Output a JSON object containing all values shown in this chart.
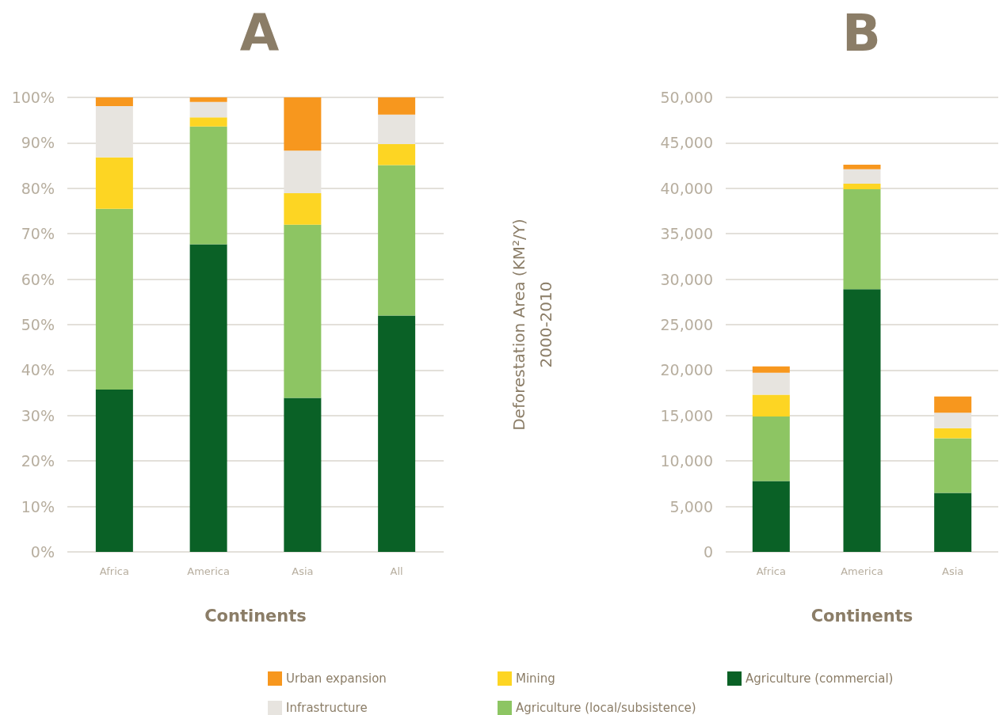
{
  "chart_data": [
    {
      "type": "bar",
      "title": "A",
      "xlabel": "Continents",
      "categories": [
        "Africa",
        "America",
        "Asia",
        "All"
      ],
      "stacked": true,
      "legend": "bottom",
      "grid": "y",
      "ylim": [
        0,
        100
      ],
      "yticks": [
        {
          "value": 0,
          "label": "0%"
        },
        {
          "value": 10,
          "label": "10%"
        },
        {
          "value": 20,
          "label": "20%"
        },
        {
          "value": 30,
          "label": "30%"
        },
        {
          "value": 40,
          "label": "40%"
        },
        {
          "value": 50,
          "label": "50%"
        },
        {
          "value": 60,
          "label": "60%"
        },
        {
          "value": 70,
          "label": "70%"
        },
        {
          "value": 80,
          "label": "80%"
        },
        {
          "value": 90,
          "label": "90%"
        },
        {
          "value": 100,
          "label": "100%"
        }
      ],
      "series": [
        {
          "name": "Agriculture (commercial)",
          "color": "#0a6126",
          "values": [
            35.7,
            67.7,
            33.9,
            52.0
          ]
        },
        {
          "name": "Agriculture (local/subsistence)",
          "color": "#8dc563",
          "values": [
            39.8,
            25.9,
            38.1,
            33.1
          ]
        },
        {
          "name": "Mining",
          "color": "#fdd523",
          "values": [
            11.3,
            2.0,
            6.9,
            4.6
          ]
        },
        {
          "name": "Infrastructure",
          "color": "#e7e4df",
          "values": [
            11.3,
            3.4,
            9.4,
            6.5
          ]
        },
        {
          "name": "Urban expansion",
          "color": "#f7971e",
          "values": [
            1.9,
            1.0,
            11.7,
            3.8
          ]
        }
      ]
    },
    {
      "type": "bar",
      "title": "B",
      "xlabel": "Continents",
      "ylabel": "Deforestation Area (KM²/Y) 2000-2010",
      "categories": [
        "Africa",
        "America",
        "Asia"
      ],
      "stacked": true,
      "grid": "y",
      "ylim": [
        0,
        50000
      ],
      "yticks": [
        {
          "value": 0,
          "label": "0"
        },
        {
          "value": 5000,
          "label": "5,000"
        },
        {
          "value": 10000,
          "label": "10,000"
        },
        {
          "value": 15000,
          "label": "15,000"
        },
        {
          "value": 20000,
          "label": "20,000"
        },
        {
          "value": 25000,
          "label": "25,000"
        },
        {
          "value": 30000,
          "label": "30,000"
        },
        {
          "value": 35000,
          "label": "35,000"
        },
        {
          "value": 40000,
          "label": "40,000"
        },
        {
          "value": 45000,
          "label": "45,000"
        },
        {
          "value": 50000,
          "label": "50,000"
        }
      ],
      "series": [
        {
          "color": "#0a6126",
          "values": [
            7800,
            28900,
            6500
          ]
        },
        {
          "color": "#8dc563",
          "values": [
            7100,
            11000,
            6000
          ]
        },
        {
          "color": "#fdd523",
          "values": [
            2400,
            600,
            1100
          ]
        },
        {
          "color": "#e7e4df",
          "values": [
            2400,
            1600,
            1700
          ]
        },
        {
          "color": "#f7971e",
          "values": [
            700,
            500,
            1800
          ]
        }
      ]
    }
  ]
}
